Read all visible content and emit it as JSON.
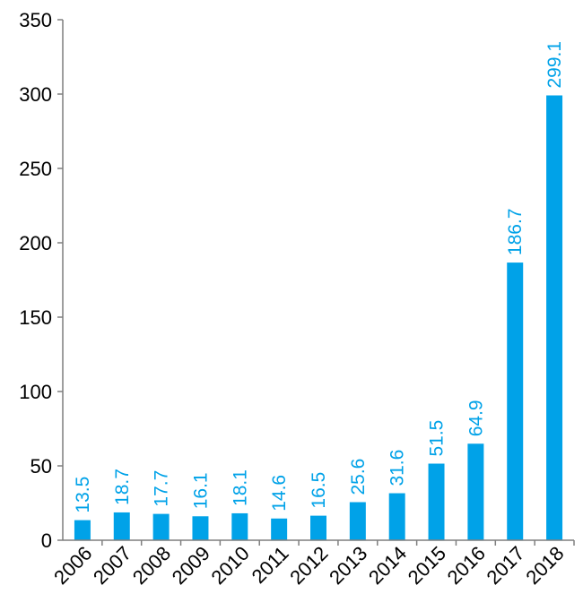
{
  "chart_data": {
    "type": "bar",
    "title": "",
    "xlabel": "",
    "ylabel": "",
    "categories": [
      "2006",
      "2007",
      "2008",
      "2009",
      "2010",
      "2011",
      "2012",
      "2013",
      "2014",
      "2015",
      "2016",
      "2017",
      "2018"
    ],
    "values": [
      13.5,
      18.7,
      17.7,
      16.1,
      18.1,
      14.6,
      16.5,
      25.6,
      31.6,
      51.5,
      64.9,
      186.7,
      299.1
    ],
    "data_labels": [
      "13.5",
      "18.7",
      "17.7",
      "16.1",
      "18.1",
      "14.6",
      "16.5",
      "25.6",
      "31.6",
      "51.5",
      "64.9",
      "186.7",
      "299.1"
    ],
    "ylim": [
      0,
      350
    ],
    "y_ticks": [
      0,
      50,
      100,
      150,
      200,
      250,
      300,
      350
    ],
    "grid": false,
    "legend": "none",
    "bar_color": "#00a2e8",
    "label_color": "#00a2e8"
  }
}
